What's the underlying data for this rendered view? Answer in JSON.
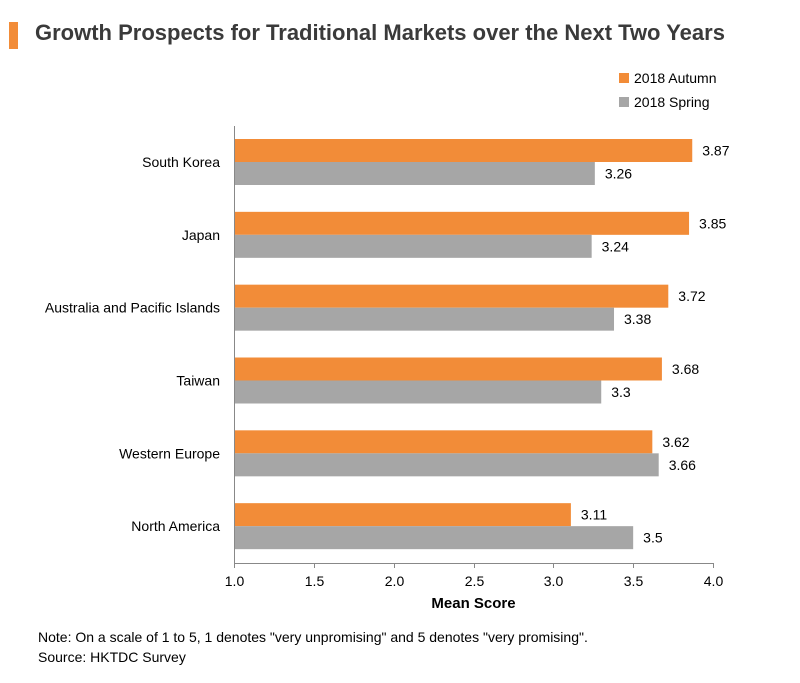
{
  "header": {
    "title": "Growth Prospects for Traditional Markets over the Next Two Years"
  },
  "notes": {
    "note": "Note: On a scale of 1 to 5, 1 denotes \"very unpromising\" and 5 denotes \"very promising\".",
    "source": "Source: HKTDC Survey"
  },
  "chart_data": {
    "type": "bar",
    "orientation": "horizontal",
    "title": "Growth Prospects for Traditional Markets over the Next Two Years",
    "xlabel": "Mean Score",
    "ylabel": "",
    "xlim": [
      1.0,
      4.0
    ],
    "ticks": [
      "1.0",
      "1.5",
      "2.0",
      "2.5",
      "3.0",
      "3.5",
      "4.0"
    ],
    "tick_values": [
      1.0,
      1.5,
      2.0,
      2.5,
      3.0,
      3.5,
      4.0
    ],
    "legend_position": "top-right",
    "grid": false,
    "categories": [
      "South Korea",
      "Japan",
      "Australia and Pacific Islands",
      "Taiwan",
      "Western Europe",
      "North America"
    ],
    "series": [
      {
        "name": "2018 Autumn",
        "color": "#f28c38",
        "values": [
          3.87,
          3.85,
          3.72,
          3.68,
          3.62,
          3.11
        ],
        "labels": [
          "3.87",
          "3.85",
          "3.72",
          "3.68",
          "3.62",
          "3.11"
        ]
      },
      {
        "name": "2018 Spring",
        "color": "#a6a6a6",
        "values": [
          3.26,
          3.24,
          3.38,
          3.3,
          3.66,
          3.5
        ],
        "labels": [
          "3.26",
          "3.24",
          "3.38",
          "3.3",
          "3.66",
          "3.5"
        ]
      }
    ]
  }
}
